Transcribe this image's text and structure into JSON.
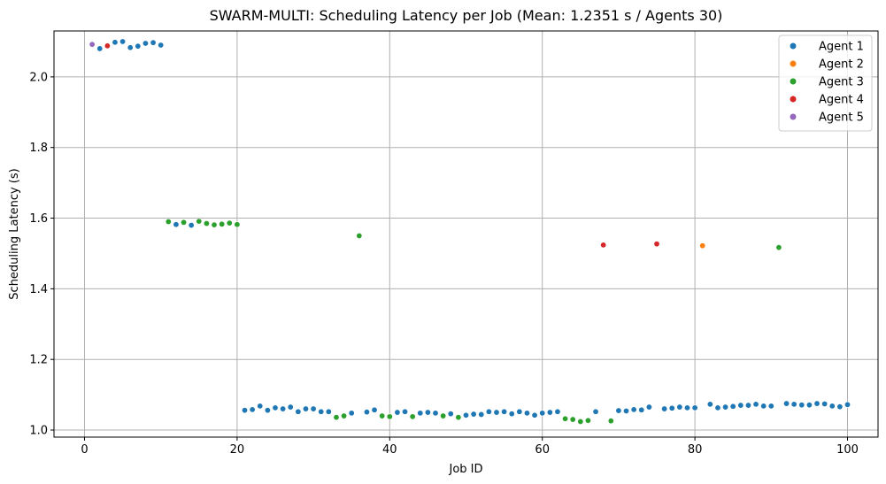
{
  "chart_data": {
    "type": "scatter",
    "title": "SWARM-MULTI: Scheduling Latency per Job (Mean: 1.2351 s / Agents 30)",
    "xlabel": "Job ID",
    "ylabel": "Scheduling Latency (s)",
    "xlim": [
      -4,
      104
    ],
    "ylim": [
      0.98,
      2.13
    ],
    "xticks": [
      0,
      20,
      40,
      60,
      80,
      100
    ],
    "xtick_labels": [
      "0",
      "20",
      "40",
      "60",
      "80",
      "100"
    ],
    "yticks": [
      1.0,
      1.2,
      1.4,
      1.6,
      1.8,
      2.0
    ],
    "ytick_labels": [
      "1.0",
      "1.2",
      "1.4",
      "1.6",
      "1.8",
      "2.0"
    ],
    "grid": true,
    "legend_position": "top-right",
    "series": [
      {
        "name": "Agent 1",
        "color": "#1f77b4",
        "points": [
          [
            2,
            2.08
          ],
          [
            4,
            2.098
          ],
          [
            5,
            2.1
          ],
          [
            6,
            2.083
          ],
          [
            7,
            2.087
          ],
          [
            8,
            2.095
          ],
          [
            9,
            2.097
          ],
          [
            10,
            2.09
          ],
          [
            12,
            1.582
          ],
          [
            14,
            1.58
          ],
          [
            21,
            1.056
          ],
          [
            22,
            1.058
          ],
          [
            23,
            1.068
          ],
          [
            24,
            1.056
          ],
          [
            25,
            1.063
          ],
          [
            26,
            1.06
          ],
          [
            27,
            1.065
          ],
          [
            28,
            1.052
          ],
          [
            29,
            1.06
          ],
          [
            30,
            1.06
          ],
          [
            31,
            1.052
          ],
          [
            32,
            1.052
          ],
          [
            35,
            1.048
          ],
          [
            37,
            1.051
          ],
          [
            38,
            1.057
          ],
          [
            41,
            1.05
          ],
          [
            42,
            1.052
          ],
          [
            44,
            1.048
          ],
          [
            45,
            1.05
          ],
          [
            46,
            1.048
          ],
          [
            48,
            1.046
          ],
          [
            50,
            1.042
          ],
          [
            51,
            1.045
          ],
          [
            52,
            1.044
          ],
          [
            53,
            1.052
          ],
          [
            54,
            1.05
          ],
          [
            55,
            1.052
          ],
          [
            56,
            1.046
          ],
          [
            57,
            1.052
          ],
          [
            58,
            1.048
          ],
          [
            59,
            1.042
          ],
          [
            60,
            1.048
          ],
          [
            61,
            1.05
          ],
          [
            62,
            1.052
          ],
          [
            67,
            1.052
          ],
          [
            70,
            1.055
          ],
          [
            71,
            1.054
          ],
          [
            72,
            1.058
          ],
          [
            73,
            1.057
          ],
          [
            74,
            1.065
          ],
          [
            76,
            1.06
          ],
          [
            77,
            1.062
          ],
          [
            78,
            1.065
          ],
          [
            79,
            1.063
          ],
          [
            80,
            1.063
          ],
          [
            82,
            1.073
          ],
          [
            83,
            1.063
          ],
          [
            84,
            1.065
          ],
          [
            85,
            1.067
          ],
          [
            86,
            1.07
          ],
          [
            87,
            1.07
          ],
          [
            88,
            1.073
          ],
          [
            89,
            1.068
          ],
          [
            90,
            1.068
          ],
          [
            92,
            1.075
          ],
          [
            93,
            1.073
          ],
          [
            94,
            1.071
          ],
          [
            95,
            1.071
          ],
          [
            96,
            1.075
          ],
          [
            97,
            1.074
          ],
          [
            98,
            1.068
          ],
          [
            99,
            1.066
          ],
          [
            100,
            1.072
          ]
        ]
      },
      {
        "name": "Agent 2",
        "color": "#ff7f0e",
        "points": [
          [
            81,
            1.522
          ]
        ]
      },
      {
        "name": "Agent 3",
        "color": "#2ca02c",
        "points": [
          [
            11,
            1.59
          ],
          [
            13,
            1.588
          ],
          [
            15,
            1.591
          ],
          [
            16,
            1.585
          ],
          [
            17,
            1.581
          ],
          [
            18,
            1.583
          ],
          [
            19,
            1.586
          ],
          [
            20,
            1.582
          ],
          [
            36,
            1.55
          ],
          [
            91,
            1.517
          ],
          [
            33,
            1.036
          ],
          [
            34,
            1.04
          ],
          [
            39,
            1.04
          ],
          [
            40,
            1.038
          ],
          [
            43,
            1.038
          ],
          [
            47,
            1.04
          ],
          [
            49,
            1.036
          ],
          [
            63,
            1.032
          ],
          [
            64,
            1.03
          ],
          [
            65,
            1.024
          ],
          [
            66,
            1.027
          ],
          [
            69,
            1.026
          ]
        ]
      },
      {
        "name": "Agent 4",
        "color": "#d62728",
        "points": [
          [
            3,
            2.088
          ],
          [
            68,
            1.524
          ],
          [
            75,
            1.527
          ]
        ]
      },
      {
        "name": "Agent 5",
        "color": "#9467bd",
        "points": [
          [
            1,
            2.092
          ]
        ]
      }
    ]
  }
}
